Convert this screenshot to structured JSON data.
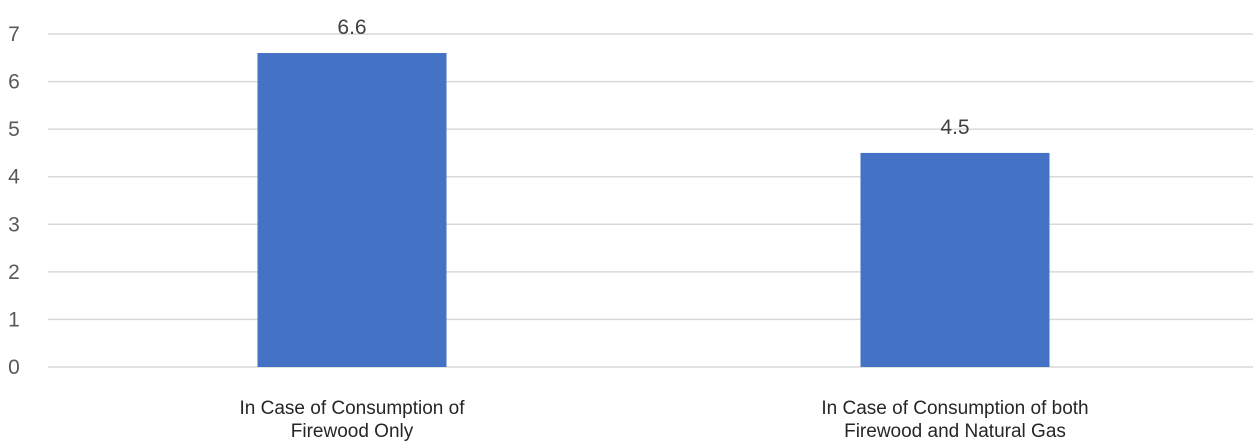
{
  "chart_data": {
    "type": "bar",
    "title": "",
    "xlabel": "",
    "ylabel": "",
    "categories": [
      [
        "In Case of Consumption of",
        "Firewood Only"
      ],
      [
        "In Case of Consumption of both",
        "Firewood and Natural Gas"
      ]
    ],
    "values": [
      6.6,
      4.5
    ],
    "data_labels": [
      "6.6",
      "4.5"
    ],
    "ylim": [
      0,
      7
    ],
    "yticks": [
      0,
      1,
      2,
      3,
      4,
      5,
      6,
      7
    ],
    "grid": true,
    "legend": "none",
    "bar_color": "#4472c4",
    "grid_color": "#d9d9d9"
  }
}
